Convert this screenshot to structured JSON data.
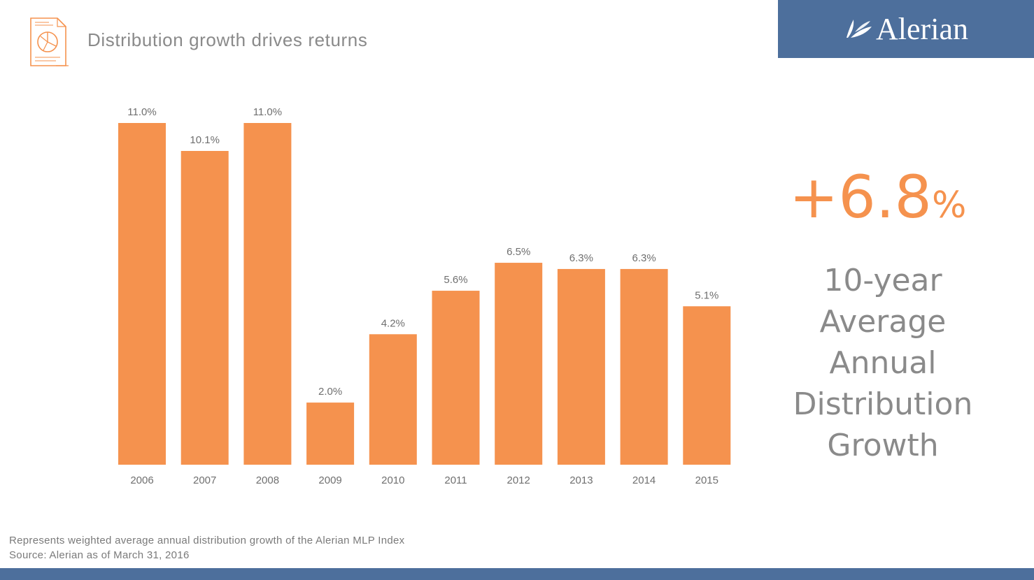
{
  "header": {
    "title": "Distribution growth drives returns",
    "icon": "report-chart-icon"
  },
  "brand": {
    "name": "Alerian",
    "icon": "alerian-logo-icon",
    "color": "#4d6f9c"
  },
  "stat": {
    "value": "+6.8",
    "suffix": "%",
    "lines": [
      "10-year",
      "Average",
      "Annual",
      "Distribution",
      "Growth"
    ]
  },
  "footnote": {
    "line1": "Represents weighted average annual distribution growth of the Alerian MLP Index",
    "line2": "Source: Alerian as of March 31, 2016"
  },
  "colors": {
    "bar": "#f5924e",
    "text": "#8a8a8a",
    "accent": "#f5924e"
  },
  "chart_data": {
    "type": "bar",
    "title": "Distribution growth drives returns",
    "categories": [
      "2006",
      "2007",
      "2008",
      "2009",
      "2010",
      "2011",
      "2012",
      "2013",
      "2014",
      "2015"
    ],
    "values": [
      11.0,
      10.1,
      11.0,
      2.0,
      4.2,
      5.6,
      6.5,
      6.3,
      6.3,
      5.1
    ],
    "labels": [
      "11.0%",
      "10.1%",
      "11.0%",
      "2.0%",
      "4.2%",
      "5.6%",
      "6.5%",
      "6.3%",
      "6.3%",
      "5.1%"
    ],
    "xlabel": "",
    "ylabel": "",
    "ylim": [
      0,
      11.3
    ],
    "grid": false,
    "legend": "none"
  }
}
